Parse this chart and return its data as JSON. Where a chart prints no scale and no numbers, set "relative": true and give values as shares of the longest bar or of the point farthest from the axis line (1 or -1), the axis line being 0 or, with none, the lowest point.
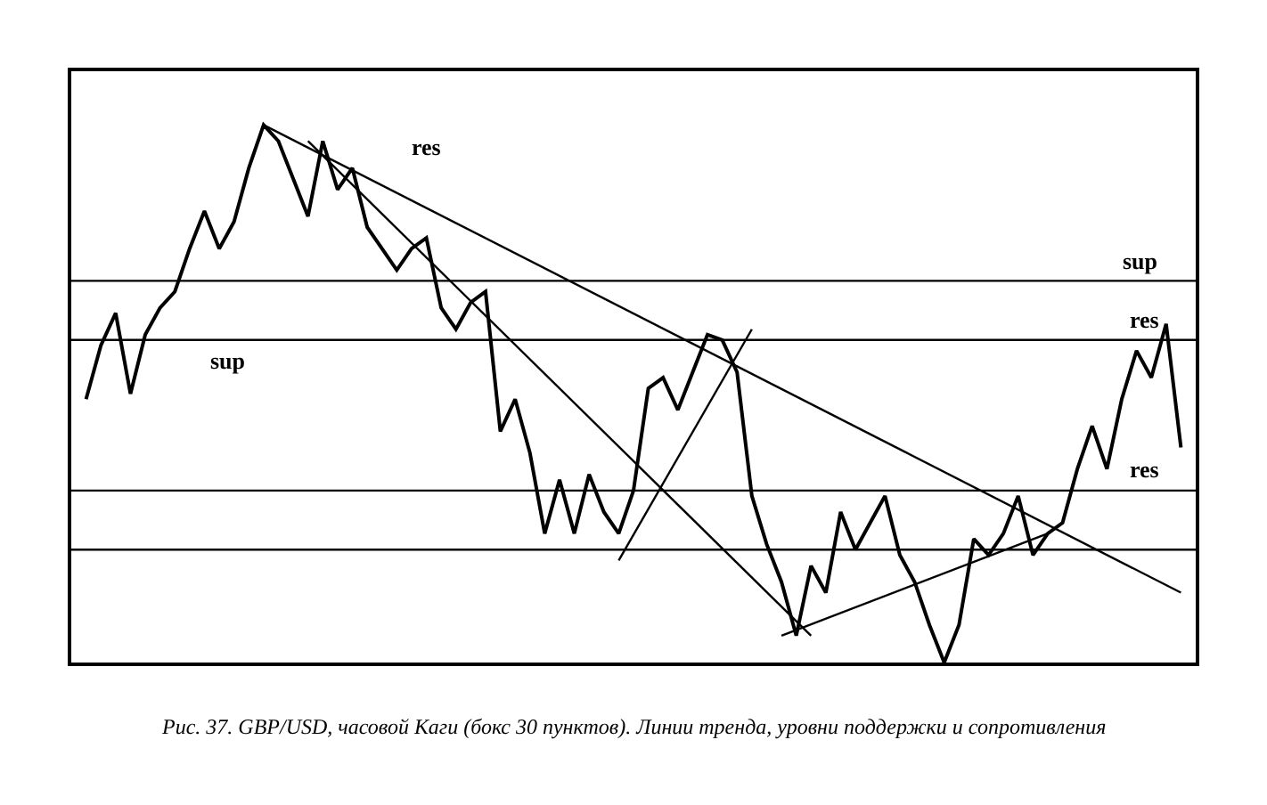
{
  "chart_data": {
    "type": "line",
    "relative": true,
    "grid": false,
    "marker": "none",
    "categories": [
      null,
      null,
      null,
      null,
      null,
      null,
      null,
      null,
      null,
      null,
      null,
      null,
      null,
      null,
      null,
      null,
      null,
      null,
      null,
      null,
      null,
      null,
      null,
      null,
      null,
      null,
      null,
      null,
      null,
      null,
      null,
      null,
      null,
      null,
      null,
      null,
      null,
      null,
      null,
      null,
      null,
      null,
      null,
      null,
      null,
      null,
      null,
      null,
      null,
      null,
      null,
      null,
      null,
      null,
      null,
      null,
      null,
      null,
      null,
      null,
      null,
      null,
      null,
      null,
      null,
      null,
      null,
      null,
      null,
      null,
      null,
      null,
      null,
      null,
      null
    ],
    "series": [
      {
        "color": "#000000",
        "values": [
          0.49,
          0.59,
          0.65,
          0.5,
          0.61,
          0.66,
          0.69,
          0.77,
          0.84,
          0.77,
          0.82,
          0.92,
          1.0,
          0.97,
          0.9,
          0.83,
          0.97,
          0.88,
          0.92,
          0.81,
          0.77,
          0.73,
          0.77,
          0.79,
          0.66,
          0.62,
          0.67,
          0.69,
          0.43,
          0.49,
          0.39,
          0.24,
          0.34,
          0.24,
          0.35,
          0.28,
          0.24,
          0.32,
          0.51,
          0.53,
          0.47,
          0.54,
          0.61,
          0.6,
          0.54,
          0.31,
          0.22,
          0.15,
          0.05,
          0.18,
          0.13,
          0.28,
          0.21,
          0.26,
          0.31,
          0.2,
          0.15,
          0.07,
          0,
          0.07,
          0.23,
          0.2,
          0.24,
          0.31,
          0.2,
          0.24,
          0.26,
          0.36,
          0.44,
          0.36,
          0.49,
          0.58,
          0.53,
          0.63,
          0.4
        ]
      },
      {
        "type": "line",
        "color": "#000000",
        "values": [
          null,
          null,
          null,
          null,
          null,
          null,
          null,
          null,
          null,
          null,
          null,
          null,
          1.0,
          null,
          null,
          null,
          null,
          null,
          null,
          null,
          null,
          null,
          null,
          null,
          null,
          null,
          null,
          null,
          null,
          null,
          null,
          null,
          null,
          null,
          null,
          null,
          null,
          null,
          null,
          null,
          null,
          null,
          null,
          null,
          null,
          null,
          null,
          null,
          null,
          null,
          null,
          null,
          null,
          null,
          null,
          null,
          null,
          null,
          null,
          null,
          null,
          null,
          null,
          null,
          null,
          null,
          null,
          null,
          null,
          null,
          null,
          null,
          null,
          null,
          0.13
        ]
      },
      {
        "type": "line",
        "color": "#000000",
        "values": [
          null,
          null,
          null,
          null,
          null,
          null,
          null,
          null,
          null,
          null,
          null,
          null,
          null,
          null,
          null,
          0.97,
          null,
          null,
          null,
          null,
          null,
          null,
          null,
          null,
          null,
          null,
          null,
          null,
          null,
          null,
          null,
          null,
          null,
          null,
          null,
          null,
          null,
          null,
          null,
          null,
          null,
          null,
          null,
          null,
          null,
          null,
          null,
          null,
          null,
          0.05,
          null,
          null,
          null,
          null,
          null,
          null,
          null,
          null,
          null,
          null,
          null,
          null,
          null,
          null,
          null,
          null,
          null,
          null,
          null,
          null,
          null,
          null,
          null,
          null,
          null
        ]
      },
      {
        "type": "line",
        "color": "#000000",
        "values": [
          null,
          null,
          null,
          null,
          null,
          null,
          null,
          null,
          null,
          null,
          null,
          null,
          null,
          null,
          null,
          null,
          null,
          null,
          null,
          null,
          null,
          null,
          null,
          null,
          null,
          null,
          null,
          null,
          null,
          null,
          null,
          null,
          null,
          null,
          null,
          null,
          0.19,
          null,
          null,
          null,
          null,
          null,
          null,
          null,
          null,
          0.62,
          null,
          null,
          null,
          null,
          null,
          null,
          null,
          null,
          null,
          null,
          null,
          null,
          null,
          null,
          null,
          null,
          null,
          null,
          null,
          null,
          null,
          null,
          null,
          null,
          null,
          null,
          null,
          null,
          null
        ]
      },
      {
        "type": "line",
        "color": "#000000",
        "values": [
          null,
          null,
          null,
          null,
          null,
          null,
          null,
          null,
          null,
          null,
          null,
          null,
          null,
          null,
          null,
          null,
          null,
          null,
          null,
          null,
          null,
          null,
          null,
          null,
          null,
          null,
          null,
          null,
          null,
          null,
          null,
          null,
          null,
          null,
          null,
          null,
          null,
          null,
          null,
          null,
          null,
          null,
          null,
          null,
          null,
          null,
          null,
          0.05,
          null,
          null,
          null,
          null,
          null,
          null,
          null,
          null,
          null,
          null,
          null,
          null,
          null,
          null,
          null,
          null,
          null,
          0.24,
          null,
          null,
          null,
          null,
          null,
          null,
          null,
          null,
          null
        ]
      }
    ],
    "ref_lines": [
      {
        "axis": "y",
        "value": 0.71,
        "label": "sup",
        "color": "#000000"
      },
      {
        "axis": "y",
        "value": 0.6,
        "label": "res",
        "color": "#000000"
      },
      {
        "axis": "y",
        "value": 0.32,
        "label": "res",
        "color": "#000000"
      },
      {
        "axis": "y",
        "value": 0.21,
        "label": null,
        "color": "#000000"
      }
    ],
    "annotations": [
      {
        "text": "sup",
        "y": 0.6
      },
      "res",
      "Рис. 37. GBP/USD, часовой Каги (бокс 30 пунктов). Линии тренда, уровни поддержки и сопротивления"
    ]
  }
}
